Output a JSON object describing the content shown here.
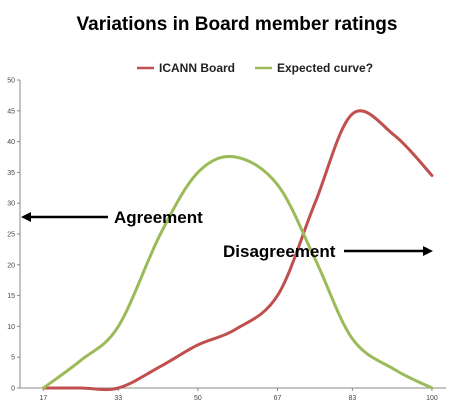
{
  "chart_data": {
    "type": "line",
    "title": "Variations in Board member ratings",
    "xlabel": "",
    "ylabel": "",
    "categories": [
      "17",
      "33",
      "50",
      "67",
      "83",
      "100"
    ],
    "ylim": [
      0,
      50
    ],
    "yticks": [
      0,
      5,
      10,
      15,
      20,
      25,
      30,
      35,
      40,
      45,
      50
    ],
    "grid": false,
    "legend_position": "top",
    "smooth": true,
    "series": [
      {
        "name": "ICANN Board",
        "color": "#c0504d",
        "points": [
          [
            17,
            0
          ],
          [
            25,
            0
          ],
          [
            33,
            0
          ],
          [
            42,
            3.5
          ],
          [
            50,
            7
          ],
          [
            58,
            9.5
          ],
          [
            67,
            15
          ],
          [
            75,
            30
          ],
          [
            83,
            44.5
          ],
          [
            92,
            41
          ],
          [
            100,
            34.5
          ]
        ]
      },
      {
        "name": "Expected curve?",
        "color": "#9bbb59",
        "points": [
          [
            17,
            0
          ],
          [
            25,
            4.5
          ],
          [
            33,
            10
          ],
          [
            42,
            25
          ],
          [
            50,
            35
          ],
          [
            58,
            37.5
          ],
          [
            67,
            33
          ],
          [
            75,
            21
          ],
          [
            83,
            8
          ],
          [
            92,
            3
          ],
          [
            100,
            0
          ]
        ]
      }
    ],
    "annotations": [
      {
        "text": "Agreement",
        "arrow": "left"
      },
      {
        "text": "Disagreement",
        "arrow": "right"
      }
    ]
  }
}
